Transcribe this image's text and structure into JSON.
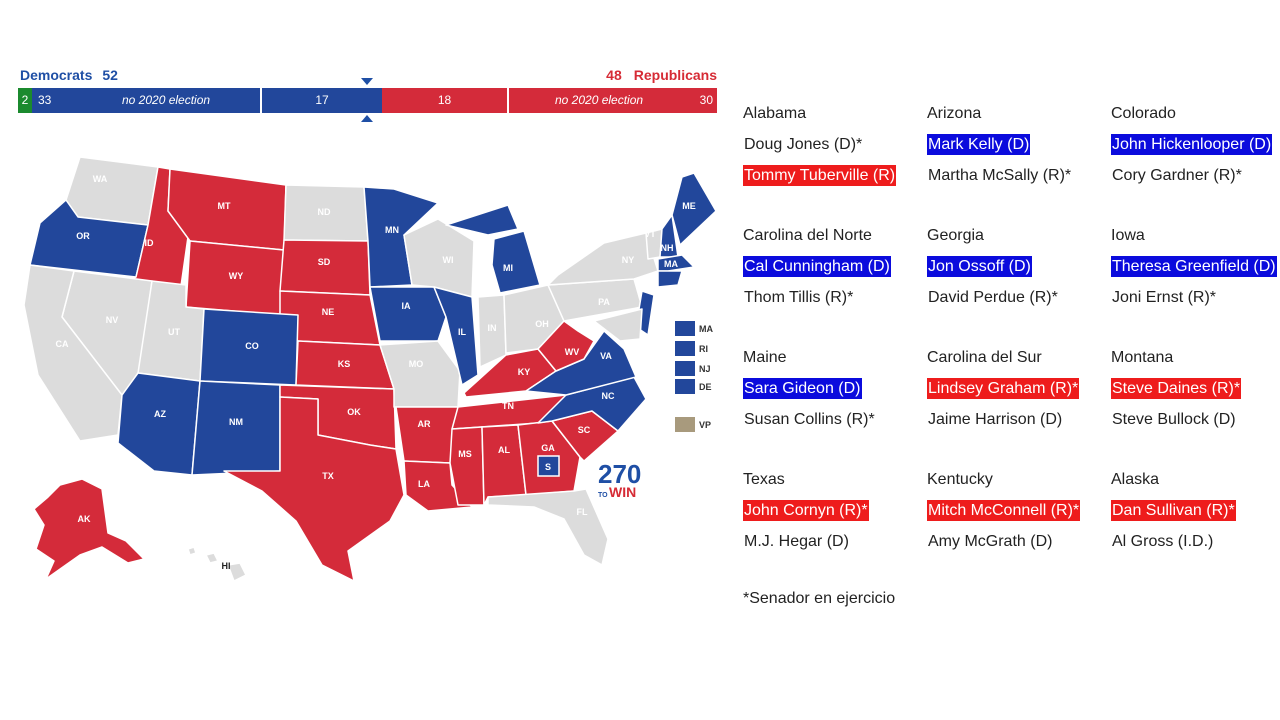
{
  "header": {
    "dem_label": "Democrats",
    "dem_total": "52",
    "rep_total": "48",
    "rep_label": "Republicans"
  },
  "bar": {
    "green": "2",
    "dem_noelection_count": "33",
    "dem_noelection_text": "no 2020 election",
    "dem_contested": "17",
    "rep_contested": "18",
    "rep_noelection_text": "no 2020 election",
    "rep_noelection_count": "30"
  },
  "map": {
    "colors": {
      "dem": "#22479b",
      "rep": "#d42b3a",
      "none": "#dcdcdc",
      "vp": "#a89a7d"
    },
    "state_labels": [
      "WA",
      "OR",
      "ID",
      "MT",
      "WY",
      "ND",
      "SD",
      "NE",
      "NV",
      "CA",
      "UT",
      "CO",
      "AZ",
      "NM",
      "KS",
      "OK",
      "TX",
      "MN",
      "IA",
      "MO",
      "AR",
      "LA",
      "WI",
      "IL",
      "MI",
      "IN",
      "OH",
      "KY",
      "TN",
      "MS",
      "AL",
      "GA",
      "FL",
      "SC",
      "NC",
      "VA",
      "WV",
      "PA",
      "NY",
      "VT",
      "NH",
      "ME",
      "MA",
      "RI",
      "NJ",
      "DE",
      "AK",
      "HI",
      "S"
    ],
    "legend": [
      "MA",
      "RI",
      "NJ",
      "DE"
    ],
    "vp_label": "VP",
    "logo_number": "270",
    "logo_to": "TO",
    "logo_win": "WIN"
  },
  "races": [
    {
      "state": "Alabama",
      "c1": "Doug Jones (D)*",
      "c1_hl": "",
      "c2": "Tommy Tuberville (R)",
      "c2_hl": "R"
    },
    {
      "state": "Arizona",
      "c1": "Mark Kelly (D)",
      "c1_hl": "D",
      "c2": "Martha McSally (R)*",
      "c2_hl": ""
    },
    {
      "state": "Colorado",
      "c1": "John Hickenlooper (D)",
      "c1_hl": "D",
      "c2": "Cory Gardner (R)*",
      "c2_hl": ""
    },
    {
      "state": "Carolina del Norte",
      "c1": "Cal Cunningham (D)",
      "c1_hl": "D",
      "c2": "Thom Tillis (R)*",
      "c2_hl": ""
    },
    {
      "state": "Georgia",
      "c1": "Jon Ossoff (D)",
      "c1_hl": "D",
      "c2": "David Perdue (R)*",
      "c2_hl": ""
    },
    {
      "state": "Iowa",
      "c1": "Theresa Greenfield (D)",
      "c1_hl": "D",
      "c2": "Joni Ernst (R)*",
      "c2_hl": ""
    },
    {
      "state": "Maine",
      "c1": "Sara Gideon (D)",
      "c1_hl": "D",
      "c2": "Susan Collins (R)*",
      "c2_hl": ""
    },
    {
      "state": "Carolina del Sur",
      "c1": "Lindsey Graham (R)*",
      "c1_hl": "R",
      "c2": "Jaime Harrison (D)",
      "c2_hl": ""
    },
    {
      "state": "Montana",
      "c1": "Steve Daines (R)*",
      "c1_hl": "R",
      "c2": "Steve Bullock (D)",
      "c2_hl": ""
    },
    {
      "state": "Texas",
      "c1": "John Cornyn (R)*",
      "c1_hl": "R",
      "c2": "M.J. Hegar (D)",
      "c2_hl": ""
    },
    {
      "state": "Kentucky",
      "c1": "Mitch McConnell (R)*",
      "c1_hl": "R",
      "c2": "Amy McGrath (D)",
      "c2_hl": ""
    },
    {
      "state": "Alaska",
      "c1": "Dan Sullivan (R)*",
      "c1_hl": "R",
      "c2": "Al Gross (I.D.)",
      "c2_hl": ""
    }
  ],
  "footnote": "*Senador en ejercicio"
}
